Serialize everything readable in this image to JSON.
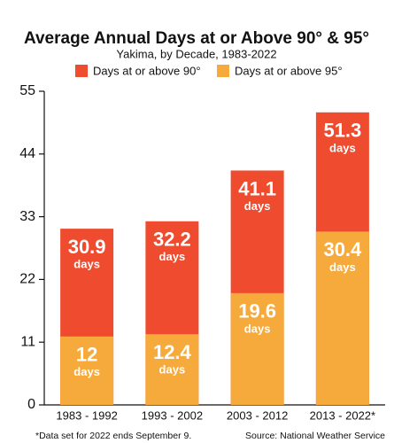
{
  "chart_data": {
    "type": "bar",
    "title": "Average Annual Days at or Above 90° & 95°",
    "subtitle": "Yakima, by Decade, 1983-2022",
    "categories": [
      "1983 - 1992",
      "1993 - 2002",
      "2003 - 2012",
      "2013 - 2022*"
    ],
    "series": [
      {
        "name": "Days at or above 90°",
        "color": "#ee4b2f",
        "values": [
          30.9,
          32.2,
          41.1,
          51.3
        ]
      },
      {
        "name": "Days at or above 95°",
        "color": "#f7aa3c",
        "values": [
          12,
          12.4,
          19.6,
          30.4
        ]
      }
    ],
    "data_label_unit": "days",
    "overlap": true,
    "ylim": [
      0,
      55
    ],
    "yticks": [
      0,
      11,
      22,
      33,
      44,
      55
    ],
    "grid": false,
    "legend": "top",
    "footnote": "*Data set for 2022 ends September 9.",
    "source": "Source: National Weather Service"
  }
}
